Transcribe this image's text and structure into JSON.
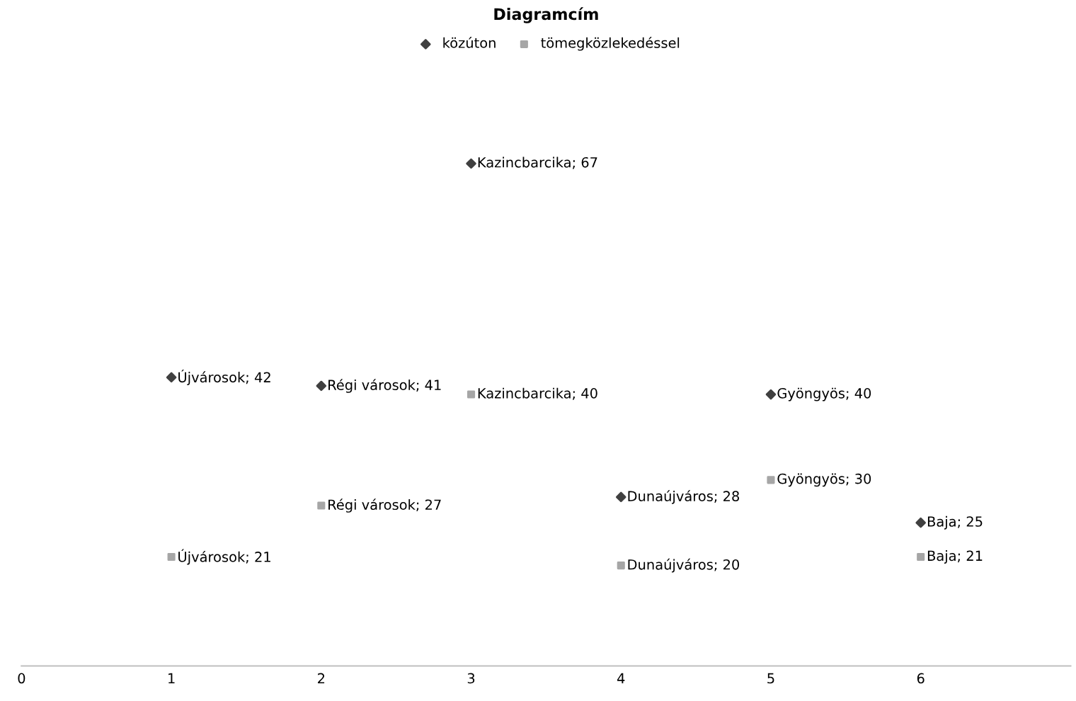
{
  "chart_data": {
    "type": "scatter",
    "title": "Diagramcím",
    "x": [
      1,
      2,
      3,
      4,
      5,
      6
    ],
    "series": [
      {
        "name": "közúton",
        "color": "#404040",
        "marker": "diamond",
        "values": [
          42,
          41,
          67,
          28,
          40,
          25
        ],
        "value_labels": [
          "Újvárosok; 42",
          "Régi városok; 41",
          "Kazincbarcika; 67",
          "Dunaújváros; 28",
          "Gyöngyös; 40",
          "Baja; 25"
        ]
      },
      {
        "name": "tömegközlekedéssel",
        "color": "#a6a6a6",
        "marker": "square",
        "values": [
          21,
          27,
          40,
          20,
          30,
          21
        ],
        "value_labels": [
          "Újvárosok; 21",
          "Régi városok; 27",
          "Kazincbarcika; 40",
          "Dunaújváros; 20",
          "Gyöngyös; 30",
          "Baja; 21"
        ]
      }
    ],
    "xlim": [
      0,
      7
    ],
    "xticks": [
      0,
      1,
      2,
      3,
      4,
      5,
      6
    ],
    "tick_labels": "x",
    "grid": false,
    "legend": "top"
  }
}
